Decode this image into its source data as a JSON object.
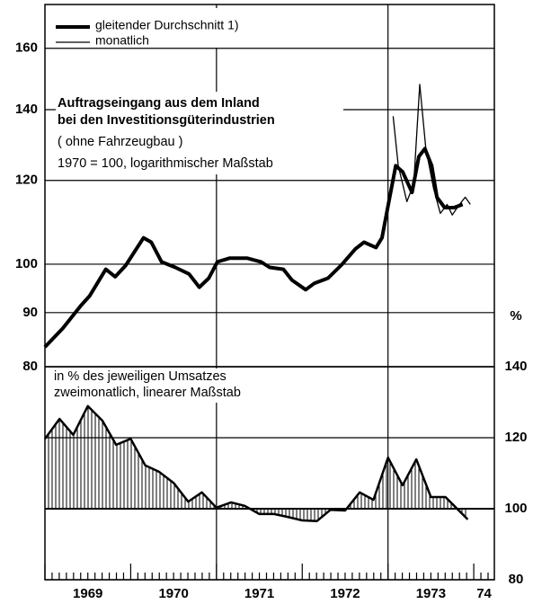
{
  "chart_data": [
    {
      "type": "line",
      "title": [
        "Auftragseingang aus dem Inland",
        "bei den Investitionsgüterindustrien"
      ],
      "subtitle": [
        "( ohne Fahrzeugbau )",
        "1970 = 100, logarithmischer Maßstab"
      ],
      "log": true,
      "ylim": [
        80,
        176
      ],
      "yticks": [
        80,
        90,
        100,
        120,
        140,
        160
      ],
      "xlim": [
        1969,
        1974.24
      ],
      "xgrid": [
        1971,
        1973
      ],
      "series": [
        {
          "name": "gleitender Durchschnitt 1)",
          "color": "#000",
          "width": 4,
          "x": [
            1969.0,
            1969.21,
            1969.42,
            1969.52,
            1969.71,
            1969.82,
            1969.94,
            1970.15,
            1970.24,
            1970.36,
            1970.52,
            1970.68,
            1970.8,
            1970.91,
            1971.01,
            1971.15,
            1971.36,
            1971.52,
            1971.62,
            1971.78,
            1971.88,
            1972.04,
            1972.14,
            1972.3,
            1972.46,
            1972.62,
            1972.72,
            1972.86,
            1972.93,
            1973.0,
            1973.09,
            1973.17,
            1973.28,
            1973.36,
            1973.43,
            1973.51,
            1973.57,
            1973.66,
            1973.77,
            1973.87
          ],
          "values": [
            83.5,
            87,
            91.4,
            93.3,
            98.9,
            97.3,
            99.7,
            105.9,
            104.9,
            100.5,
            99.3,
            97.9,
            95.1,
            97,
            100.5,
            101.3,
            101.3,
            100.5,
            99.3,
            98.9,
            96.6,
            94.6,
            95.9,
            97,
            99.9,
            103.4,
            104.9,
            103.7,
            105.9,
            113.5,
            123.9,
            122.3,
            116.9,
            126.4,
            128.6,
            123.9,
            115.7,
            113.1,
            113.1,
            113.9
          ]
        },
        {
          "name": "monatlich",
          "color": "#000",
          "width": 1.3,
          "x": [
            1973.06,
            1973.12,
            1973.22,
            1973.3,
            1973.37,
            1973.44,
            1973.53,
            1973.61,
            1973.69,
            1973.75,
            1973.82,
            1973.9,
            1973.96
          ],
          "values": [
            138,
            123.9,
            114.6,
            119.1,
            147.9,
            128.8,
            118,
            111.7,
            113.9,
            111.3,
            113.5,
            115.7,
            113.9
          ]
        }
      ]
    },
    {
      "type": "area",
      "subtitle": [
        "in % des jeweiligen Umsatzes",
        "zweimonatlich, linearer Maßstab"
      ],
      "ylabel": "%",
      "baseline": 100,
      "ylim": [
        80,
        140
      ],
      "yticks": [
        80,
        100,
        120,
        140
      ],
      "xlim": [
        1969,
        1974.24
      ],
      "xlabels": [
        "1969",
        "1970",
        "1971",
        "1972",
        "1973",
        "74"
      ],
      "x": [
        1969.0,
        1969.17,
        1969.33,
        1969.5,
        1969.67,
        1969.83,
        1970.0,
        1970.17,
        1970.33,
        1970.5,
        1970.67,
        1970.83,
        1971.0,
        1971.17,
        1971.33,
        1971.5,
        1971.67,
        1971.83,
        1972.0,
        1972.17,
        1972.33,
        1972.5,
        1972.67,
        1972.83,
        1973.0,
        1973.17,
        1973.33,
        1973.5,
        1973.67,
        1973.93
      ],
      "values": [
        119.7,
        125.3,
        120.8,
        128.9,
        124.8,
        118,
        119.7,
        112.2,
        110.4,
        107.3,
        102,
        104.6,
        100.3,
        101.8,
        100.8,
        98.5,
        98.5,
        97.7,
        96.7,
        96.5,
        99.7,
        99.5,
        104.6,
        102.5,
        114.4,
        106.6,
        113.9,
        103.3,
        103.3,
        97
      ]
    }
  ]
}
